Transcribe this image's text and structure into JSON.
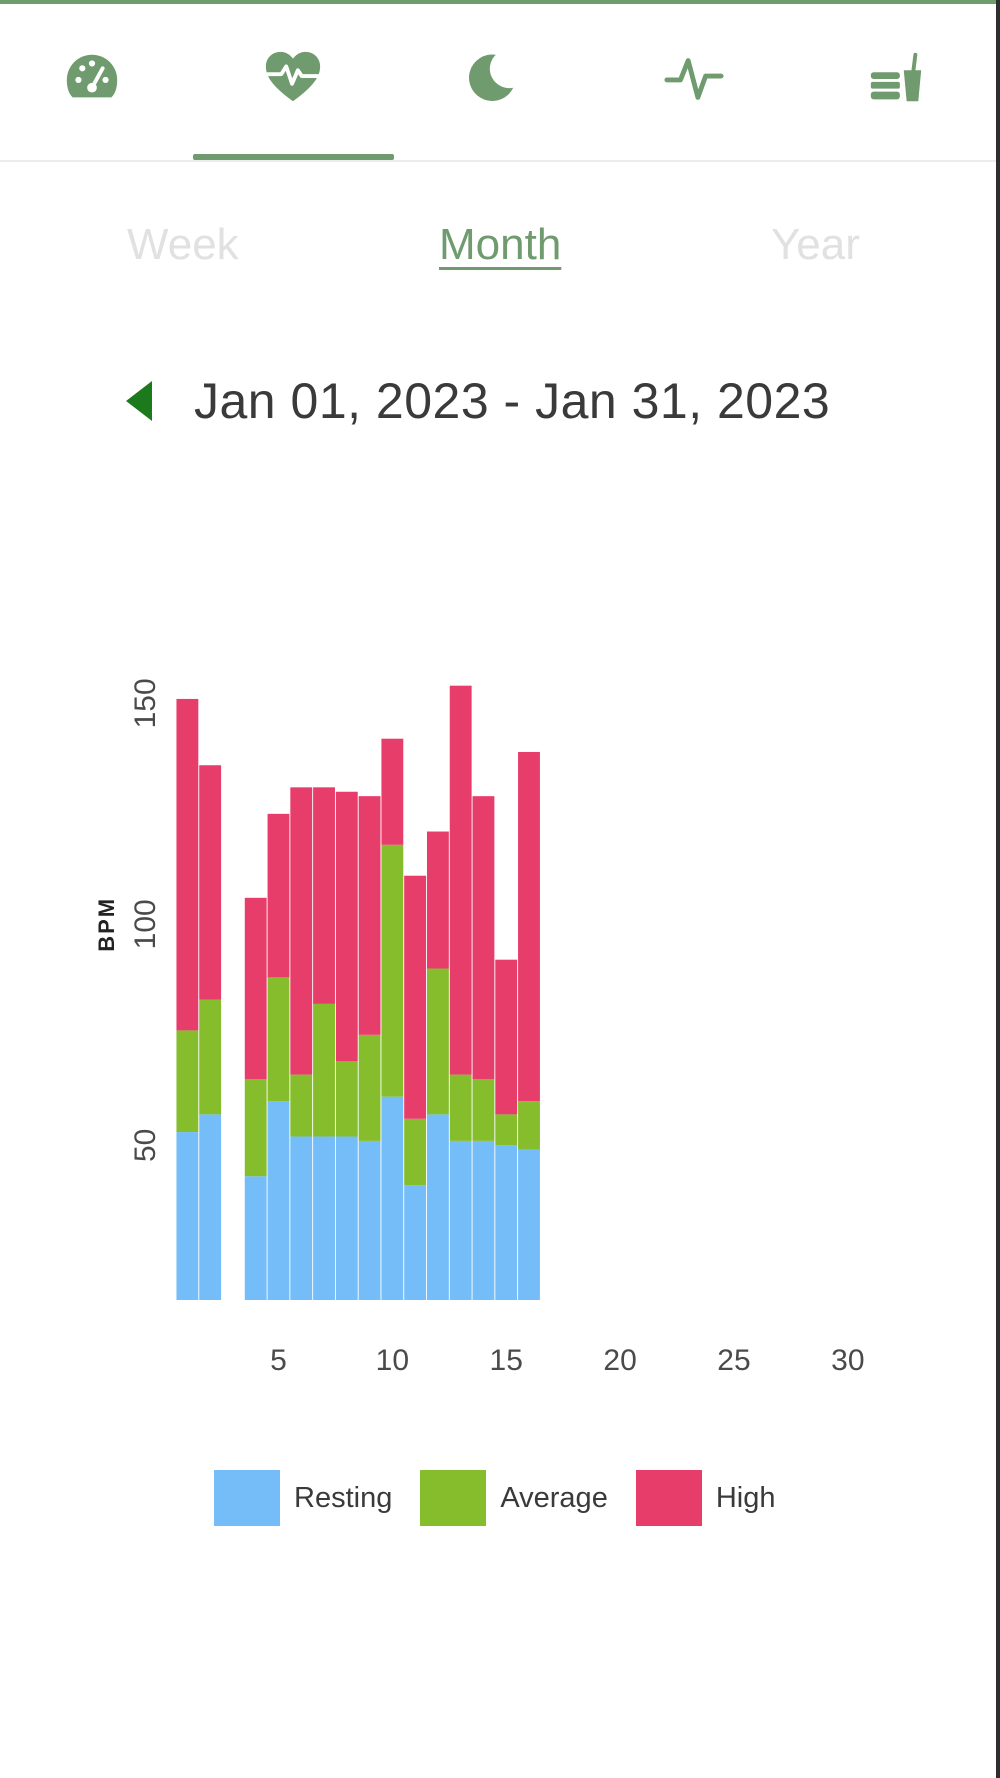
{
  "nav": {
    "tabs": [
      {
        "name": "dashboard",
        "icon": "gauge-icon"
      },
      {
        "name": "heart-rate",
        "icon": "heart-pulse-icon",
        "active": true
      },
      {
        "name": "sleep",
        "icon": "moon-icon"
      },
      {
        "name": "activity",
        "icon": "activity-line-icon"
      },
      {
        "name": "nutrition",
        "icon": "food-drink-icon"
      }
    ],
    "icon_color": "#6f9b6f"
  },
  "range": {
    "tabs": [
      "Week",
      "Month",
      "Year"
    ],
    "selected": "Month",
    "active_color": "#6f9b6f",
    "inactive_color": "#e1e1e1"
  },
  "date_range": {
    "label": "Jan 01, 2023 - Jan 31, 2023",
    "prev_arrow_color": "#1c7a1c"
  },
  "chart_data": {
    "type": "bar",
    "stacked": true,
    "ylabel": "BPM",
    "xlabel": "",
    "x_ticks": [
      5,
      10,
      15,
      20,
      25,
      30
    ],
    "y_ticks": [
      50,
      100,
      150
    ],
    "ylim": [
      15,
      158
    ],
    "xlim": [
      0.5,
      31.5
    ],
    "categories": [
      1,
      2,
      3,
      4,
      5,
      6,
      7,
      8,
      9,
      10,
      11,
      12,
      13,
      14,
      15,
      16
    ],
    "series": [
      {
        "name": "Resting",
        "color": "#74bdf8",
        "values": [
          53,
          57,
          0,
          43,
          60,
          52,
          52,
          52,
          51,
          61,
          41,
          57,
          51,
          51,
          50,
          49
        ]
      },
      {
        "name": "Average",
        "color": "#86bd2c",
        "values": [
          23,
          26,
          0,
          22,
          28,
          14,
          30,
          17,
          24,
          57,
          15,
          33,
          15,
          14,
          7,
          11
        ]
      },
      {
        "name": "High",
        "color": "#e73d6b",
        "values": [
          75,
          53,
          0,
          41,
          37,
          65,
          49,
          61,
          54,
          24,
          55,
          31,
          88,
          64,
          35,
          79
        ]
      }
    ],
    "legend": [
      "Resting",
      "Average",
      "High"
    ],
    "legend_position": "bottom"
  }
}
